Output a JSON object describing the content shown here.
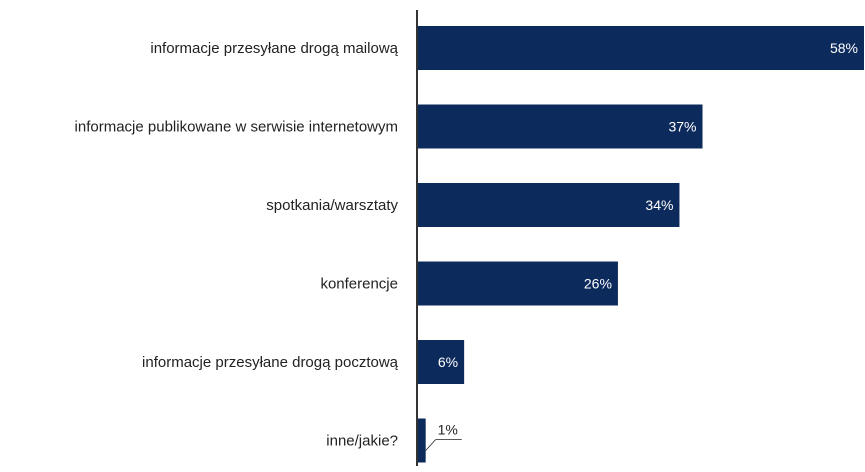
{
  "chart_data": {
    "type": "bar",
    "orientation": "horizontal",
    "categories": [
      "informacje przesyłane drogą mailową",
      "informacje publikowane w serwisie internetowym",
      "spotkania/warsztaty",
      "konferencje",
      "informacje przesyłane drogą pocztową",
      "inne/jakie?"
    ],
    "values": [
      58,
      37,
      34,
      26,
      6,
      1
    ],
    "value_labels": [
      "58%",
      "37%",
      "34%",
      "26%",
      "6%",
      "1%"
    ],
    "unit": "%",
    "xlim": [
      0,
      58
    ],
    "grid": false,
    "legend": "none",
    "colors": {
      "bar": "#0d2a5c",
      "axis": "#333333",
      "label_inside": "#ffffff",
      "label_outside": "#222222",
      "category_text": "#222222"
    }
  }
}
